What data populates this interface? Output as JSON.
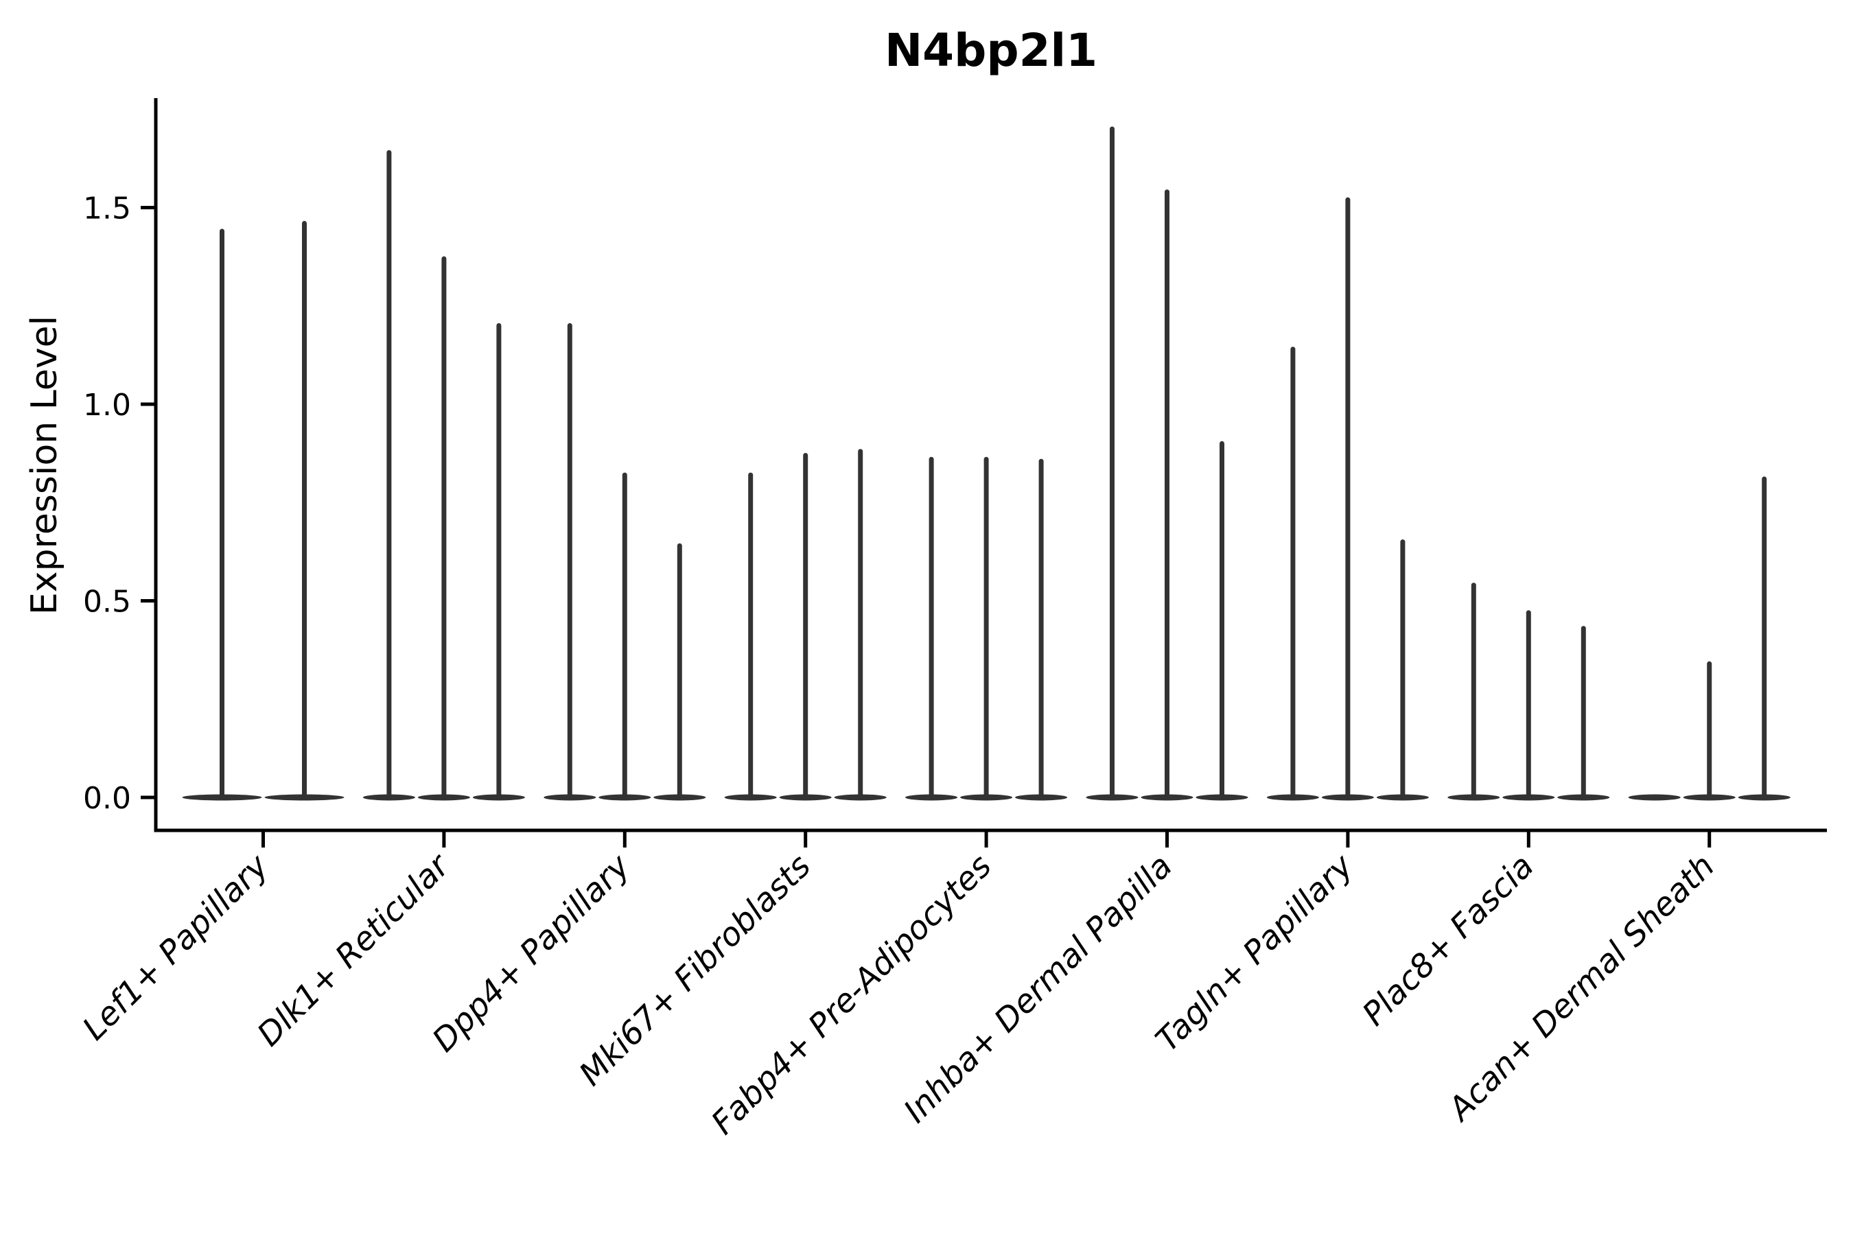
{
  "title": "N4bp2l1",
  "axes": {
    "ylabel": "Expression Level",
    "ytick_labels": [
      "0.0",
      "0.5",
      "1.0",
      "1.5"
    ],
    "ytick_values": [
      0.0,
      0.5,
      1.0,
      1.5
    ]
  },
  "style": {
    "background": "#ffffff",
    "axis_color": "#000000",
    "violin_color": "#333333"
  },
  "chart_data": {
    "type": "violin",
    "title": "N4bp2l1",
    "xlabel": "",
    "ylabel": "Expression Level",
    "ylim": [
      -0.08,
      1.78
    ],
    "yticks": [
      0.0,
      0.5,
      1.0,
      1.5
    ],
    "grid": false,
    "legend": "none",
    "note": "Thin needle violins: bulk of cells at 0 expression (flat body at y=0), sparse high-expressing cells form vertical spikes; violin_max lists the top expression value of each violin in the group (0 = flat violin with no spike)",
    "categories": [
      "Lef1+ Papillary",
      "Dlk1+ Reticular",
      "Dpp4+ Papillary",
      "Mki67+ Fibroblasts",
      "Fabp4+ Pre-Adipocytes",
      "Inhba+ Dermal Papilla",
      "Tagln+ Papillary",
      "Plac8+ Fascia",
      "Acan+ Dermal Sheath"
    ],
    "groups": [
      {
        "label": "Lef1+ Papillary",
        "violin_max": [
          1.44,
          1.46
        ]
      },
      {
        "label": "Dlk1+ Reticular",
        "violin_max": [
          1.64,
          1.37,
          1.2
        ]
      },
      {
        "label": "Dpp4+ Papillary",
        "violin_max": [
          1.2,
          0.82,
          0.64
        ]
      },
      {
        "label": "Mki67+ Fibroblasts",
        "violin_max": [
          0.82,
          0.87,
          0.88
        ]
      },
      {
        "label": "Fabp4+ Pre-Adipocytes",
        "violin_max": [
          0.86,
          0.86,
          0.855
        ]
      },
      {
        "label": "Inhba+ Dermal Papilla",
        "violin_max": [
          1.7,
          1.54,
          0.9
        ]
      },
      {
        "label": "Tagln+ Papillary",
        "violin_max": [
          1.14,
          1.52,
          0.65
        ]
      },
      {
        "label": "Plac8+ Fascia",
        "violin_max": [
          0.54,
          0.47,
          0.43
        ]
      },
      {
        "label": "Acan+ Dermal Sheath",
        "violin_max": [
          0.0,
          0.34,
          0.81
        ]
      }
    ]
  }
}
